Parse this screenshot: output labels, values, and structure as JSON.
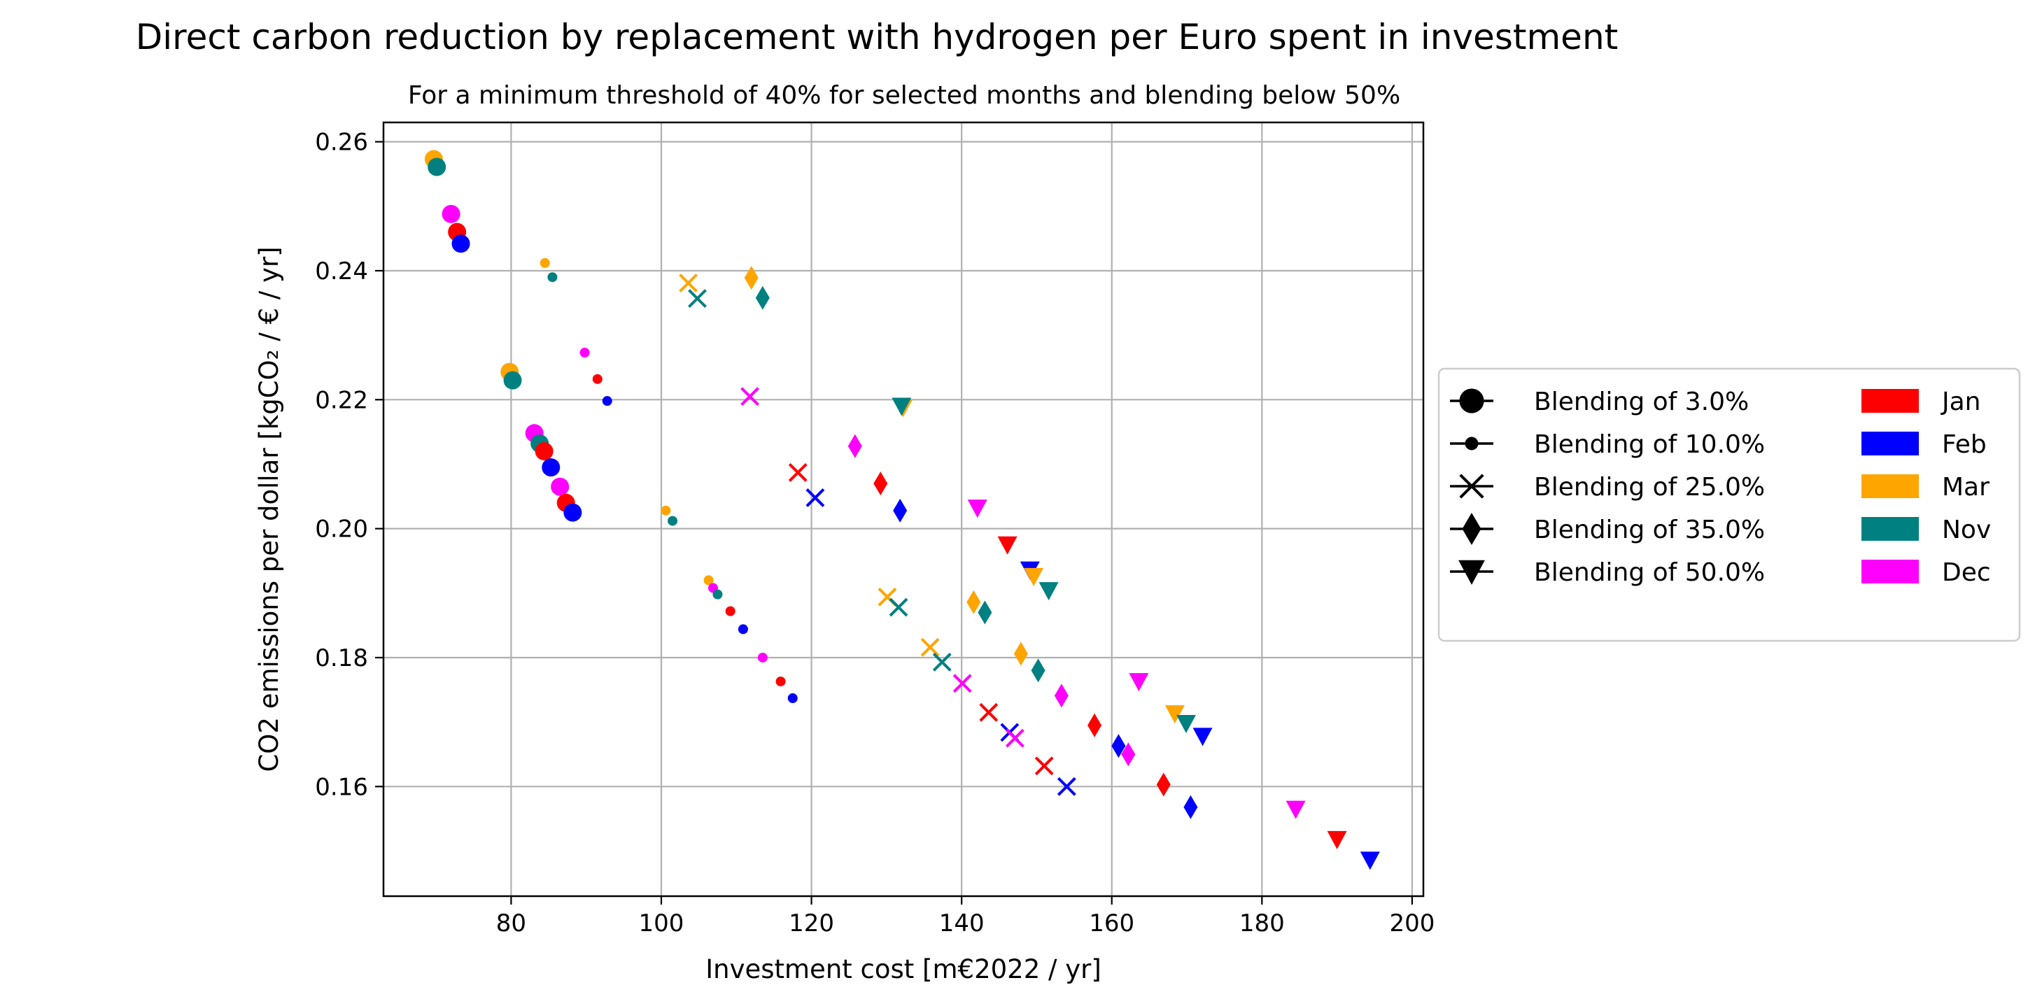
{
  "chart_data": {
    "type": "scatter",
    "title": "Direct carbon reduction by replacement with hydrogen per Euro spent in investment",
    "subtitle": "For a minimum threshold of 40% for selected months and blending below 50%",
    "xlabel": "Investment cost [m€2022 / yr]",
    "ylabel": "CO2 emissions per dollar [kgCO₂ / € / yr]",
    "xlim": [
      63,
      201.5
    ],
    "ylim": [
      0.143,
      0.263
    ],
    "xticks": [
      80,
      100,
      120,
      140,
      160,
      180,
      200
    ],
    "xtick_labels": [
      "80",
      "100",
      "120",
      "140",
      "160",
      "180",
      "200"
    ],
    "yticks": [
      0.16,
      0.18,
      0.2,
      0.22,
      0.24,
      0.26
    ],
    "ytick_labels": [
      "0.16",
      "0.18",
      "0.20",
      "0.22",
      "0.24",
      "0.26"
    ],
    "grid": true,
    "legend_placement": "right outside",
    "blending_legend": [
      {
        "label": "Blending of 3.0%",
        "marker": "circle-large"
      },
      {
        "label": "Blending of 10.0%",
        "marker": "circle-small"
      },
      {
        "label": "Blending of 25.0%",
        "marker": "x"
      },
      {
        "label": "Blending of 35.0%",
        "marker": "diamond"
      },
      {
        "label": "Blending of 50.0%",
        "marker": "triangle-down"
      }
    ],
    "month_legend": [
      {
        "label": "Jan",
        "color": "#ff0000"
      },
      {
        "label": "Feb",
        "color": "#0000ff"
      },
      {
        "label": "Mar",
        "color": "#ffa500"
      },
      {
        "label": "Nov",
        "color": "#008080"
      },
      {
        "label": "Dec",
        "color": "#ff00ff"
      }
    ],
    "points": [
      {
        "x": 69.7,
        "y": 0.2573,
        "month": "Mar",
        "marker": "circle-large"
      },
      {
        "x": 70.1,
        "y": 0.2561,
        "month": "Nov",
        "marker": "circle-large"
      },
      {
        "x": 72.0,
        "y": 0.2488,
        "month": "Dec",
        "marker": "circle-large"
      },
      {
        "x": 72.8,
        "y": 0.246,
        "month": "Jan",
        "marker": "circle-large"
      },
      {
        "x": 73.3,
        "y": 0.2442,
        "month": "Feb",
        "marker": "circle-large"
      },
      {
        "x": 79.8,
        "y": 0.2243,
        "month": "Mar",
        "marker": "circle-large"
      },
      {
        "x": 80.2,
        "y": 0.223,
        "month": "Nov",
        "marker": "circle-large"
      },
      {
        "x": 83.1,
        "y": 0.2148,
        "month": "Dec",
        "marker": "circle-large"
      },
      {
        "x": 83.8,
        "y": 0.2132,
        "month": "Nov",
        "marker": "circle-large"
      },
      {
        "x": 84.4,
        "y": 0.212,
        "month": "Jan",
        "marker": "circle-large"
      },
      {
        "x": 85.3,
        "y": 0.2095,
        "month": "Feb",
        "marker": "circle-large"
      },
      {
        "x": 86.5,
        "y": 0.2065,
        "month": "Dec",
        "marker": "circle-large"
      },
      {
        "x": 87.3,
        "y": 0.204,
        "month": "Jan",
        "marker": "circle-large"
      },
      {
        "x": 88.2,
        "y": 0.2025,
        "month": "Feb",
        "marker": "circle-large"
      },
      {
        "x": 84.5,
        "y": 0.2412,
        "month": "Mar",
        "marker": "circle-small"
      },
      {
        "x": 85.5,
        "y": 0.239,
        "month": "Nov",
        "marker": "circle-small"
      },
      {
        "x": 89.8,
        "y": 0.2273,
        "month": "Dec",
        "marker": "circle-small"
      },
      {
        "x": 91.5,
        "y": 0.2232,
        "month": "Jan",
        "marker": "circle-small"
      },
      {
        "x": 92.8,
        "y": 0.2198,
        "month": "Feb",
        "marker": "circle-small"
      },
      {
        "x": 100.6,
        "y": 0.2028,
        "month": "Mar",
        "marker": "circle-small"
      },
      {
        "x": 101.5,
        "y": 0.2012,
        "month": "Nov",
        "marker": "circle-small"
      },
      {
        "x": 106.3,
        "y": 0.192,
        "month": "Mar",
        "marker": "circle-small"
      },
      {
        "x": 106.9,
        "y": 0.1908,
        "month": "Dec",
        "marker": "circle-small"
      },
      {
        "x": 107.5,
        "y": 0.1898,
        "month": "Nov",
        "marker": "circle-small"
      },
      {
        "x": 109.2,
        "y": 0.1872,
        "month": "Jan",
        "marker": "circle-small"
      },
      {
        "x": 110.9,
        "y": 0.1844,
        "month": "Feb",
        "marker": "circle-small"
      },
      {
        "x": 113.5,
        "y": 0.18,
        "month": "Dec",
        "marker": "circle-small"
      },
      {
        "x": 115.9,
        "y": 0.1763,
        "month": "Jan",
        "marker": "circle-small"
      },
      {
        "x": 117.5,
        "y": 0.1737,
        "month": "Feb",
        "marker": "circle-small"
      },
      {
        "x": 103.6,
        "y": 0.2381,
        "month": "Mar",
        "marker": "x"
      },
      {
        "x": 104.8,
        "y": 0.2357,
        "month": "Nov",
        "marker": "x"
      },
      {
        "x": 111.8,
        "y": 0.2205,
        "month": "Dec",
        "marker": "x"
      },
      {
        "x": 118.2,
        "y": 0.2087,
        "month": "Jan",
        "marker": "x"
      },
      {
        "x": 120.5,
        "y": 0.2048,
        "month": "Feb",
        "marker": "x"
      },
      {
        "x": 130.1,
        "y": 0.1894,
        "month": "Mar",
        "marker": "x"
      },
      {
        "x": 131.6,
        "y": 0.1878,
        "month": "Nov",
        "marker": "x"
      },
      {
        "x": 135.8,
        "y": 0.1816,
        "month": "Mar",
        "marker": "x"
      },
      {
        "x": 137.4,
        "y": 0.1793,
        "month": "Nov",
        "marker": "x"
      },
      {
        "x": 140.1,
        "y": 0.176,
        "month": "Dec",
        "marker": "x"
      },
      {
        "x": 143.6,
        "y": 0.1715,
        "month": "Jan",
        "marker": "x"
      },
      {
        "x": 146.4,
        "y": 0.1684,
        "month": "Feb",
        "marker": "x"
      },
      {
        "x": 147.1,
        "y": 0.1675,
        "month": "Dec",
        "marker": "x"
      },
      {
        "x": 151.0,
        "y": 0.1632,
        "month": "Jan",
        "marker": "x"
      },
      {
        "x": 154.0,
        "y": 0.16,
        "month": "Feb",
        "marker": "x"
      },
      {
        "x": 112.0,
        "y": 0.2389,
        "month": "Mar",
        "marker": "diamond"
      },
      {
        "x": 113.5,
        "y": 0.2358,
        "month": "Nov",
        "marker": "diamond"
      },
      {
        "x": 125.8,
        "y": 0.2128,
        "month": "Dec",
        "marker": "diamond"
      },
      {
        "x": 129.2,
        "y": 0.207,
        "month": "Jan",
        "marker": "diamond"
      },
      {
        "x": 131.8,
        "y": 0.2028,
        "month": "Feb",
        "marker": "diamond"
      },
      {
        "x": 141.6,
        "y": 0.1886,
        "month": "Mar",
        "marker": "diamond"
      },
      {
        "x": 143.1,
        "y": 0.187,
        "month": "Nov",
        "marker": "diamond"
      },
      {
        "x": 147.9,
        "y": 0.1806,
        "month": "Mar",
        "marker": "diamond"
      },
      {
        "x": 150.2,
        "y": 0.178,
        "month": "Nov",
        "marker": "diamond"
      },
      {
        "x": 153.3,
        "y": 0.1741,
        "month": "Dec",
        "marker": "diamond"
      },
      {
        "x": 157.7,
        "y": 0.1695,
        "month": "Jan",
        "marker": "diamond"
      },
      {
        "x": 160.9,
        "y": 0.1663,
        "month": "Feb",
        "marker": "diamond"
      },
      {
        "x": 162.2,
        "y": 0.165,
        "month": "Dec",
        "marker": "diamond"
      },
      {
        "x": 166.9,
        "y": 0.1603,
        "month": "Jan",
        "marker": "diamond"
      },
      {
        "x": 170.5,
        "y": 0.1568,
        "month": "Feb",
        "marker": "diamond"
      },
      {
        "x": 132.2,
        "y": 0.2188,
        "month": "Mar",
        "marker": "triangle-down"
      },
      {
        "x": 132.0,
        "y": 0.219,
        "month": "Nov",
        "marker": "triangle-down"
      },
      {
        "x": 142.1,
        "y": 0.2032,
        "month": "Dec",
        "marker": "triangle-down"
      },
      {
        "x": 146.1,
        "y": 0.1975,
        "month": "Jan",
        "marker": "triangle-down"
      },
      {
        "x": 149.1,
        "y": 0.1936,
        "month": "Feb",
        "marker": "triangle-down"
      },
      {
        "x": 149.6,
        "y": 0.1926,
        "month": "Mar",
        "marker": "triangle-down"
      },
      {
        "x": 151.6,
        "y": 0.1904,
        "month": "Nov",
        "marker": "triangle-down"
      },
      {
        "x": 163.6,
        "y": 0.1763,
        "month": "Dec",
        "marker": "triangle-down"
      },
      {
        "x": 168.4,
        "y": 0.1713,
        "month": "Mar",
        "marker": "triangle-down"
      },
      {
        "x": 169.9,
        "y": 0.1698,
        "month": "Nov",
        "marker": "triangle-down"
      },
      {
        "x": 172.1,
        "y": 0.1678,
        "month": "Feb",
        "marker": "triangle-down"
      },
      {
        "x": 184.5,
        "y": 0.1565,
        "month": "Dec",
        "marker": "triangle-down"
      },
      {
        "x": 190.0,
        "y": 0.1518,
        "month": "Jan",
        "marker": "triangle-down"
      },
      {
        "x": 194.4,
        "y": 0.1486,
        "month": "Feb",
        "marker": "triangle-down"
      }
    ]
  }
}
